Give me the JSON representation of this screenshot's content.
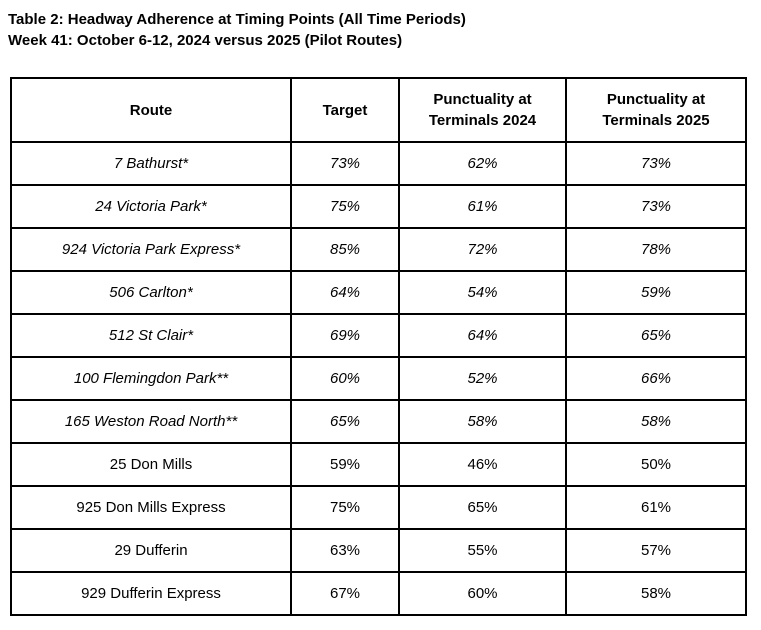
{
  "title": {
    "line1": "Table 2: Headway Adherence at Timing Points (All Time Periods)",
    "line2": "Week 41: October 6-12, 2024 versus 2025 (Pilot Routes)"
  },
  "table": {
    "headers": [
      "Route",
      "Target",
      "Punctuality at Terminals 2024",
      "Punctuality at Terminals 2025"
    ],
    "rows": [
      {
        "route": "7 Bathurst*",
        "target": "73%",
        "p2024": "62%",
        "p2025": "73%"
      },
      {
        "route": "24 Victoria Park*",
        "target": "75%",
        "p2024": "61%",
        "p2025": "73%"
      },
      {
        "route": "924 Victoria Park Express*",
        "target": "85%",
        "p2024": "72%",
        "p2025": "78%"
      },
      {
        "route": "506 Carlton*",
        "target": "64%",
        "p2024": "54%",
        "p2025": "59%"
      },
      {
        "route": "512 St Clair*",
        "target": "69%",
        "p2024": "64%",
        "p2025": "65%"
      },
      {
        "route": "100 Flemingdon Park**",
        "target": "60%",
        "p2024": "52%",
        "p2025": "66%"
      },
      {
        "route": "165 Weston Road North**",
        "target": "65%",
        "p2024": "58%",
        "p2025": "58%"
      },
      {
        "route": "25 Don Mills",
        "target": "59%",
        "p2024": "46%",
        "p2025": "50%"
      },
      {
        "route": "925 Don Mills Express",
        "target": "75%",
        "p2024": "65%",
        "p2025": "61%"
      },
      {
        "route": "29 Dufferin",
        "target": "63%",
        "p2024": "55%",
        "p2025": "57%"
      },
      {
        "route": "929 Dufferin Express",
        "target": "67%",
        "p2024": "60%",
        "p2025": "58%"
      }
    ]
  },
  "colors": {
    "text": "#000000",
    "border": "#000000",
    "background": "#ffffff"
  }
}
